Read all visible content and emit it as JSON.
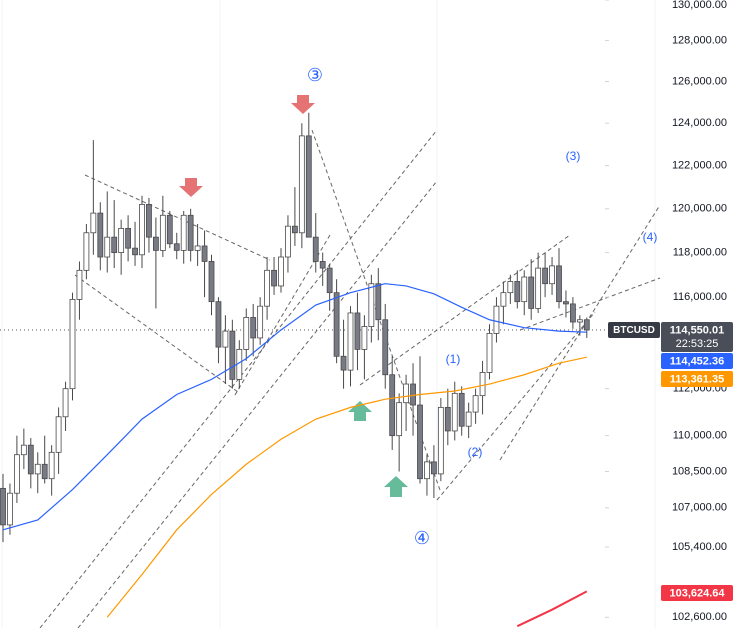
{
  "chart_data": {
    "type": "candlestick",
    "symbol": "BTCUSD",
    "countdown": "22:53:25",
    "last_price": 114550.01,
    "last_price_label": "114,550.01",
    "log_scale": true,
    "up_color": "#ffffff",
    "down_color": "#787b86",
    "wick_color": "#4a4a4a",
    "ylim": [
      102180,
      130000
    ],
    "yticks": [
      {
        "value": 130000,
        "label": "130,000.00"
      },
      {
        "value": 128000,
        "label": "128,000.00"
      },
      {
        "value": 126000,
        "label": "126,000.00"
      },
      {
        "value": 124000,
        "label": "124,000.00"
      },
      {
        "value": 122000,
        "label": "122,000.00"
      },
      {
        "value": 120000,
        "label": "120,000.00"
      },
      {
        "value": 118000,
        "label": "118,000.00"
      },
      {
        "value": 116000,
        "label": "116,000.00"
      },
      {
        "value": 112000,
        "label": "112,000.00"
      },
      {
        "value": 110000,
        "label": "110,000.00"
      },
      {
        "value": 108500,
        "label": "108,500.00"
      },
      {
        "value": 107000,
        "label": "107,000.00"
      },
      {
        "value": 105400,
        "label": "105,400.00"
      },
      {
        "value": 102600,
        "label": "102,600.00"
      }
    ],
    "ohlc": [
      [
        107800,
        108400,
        105600,
        106300
      ],
      [
        106300,
        108000,
        105900,
        107600
      ],
      [
        107600,
        110000,
        107200,
        109200
      ],
      [
        109200,
        110300,
        108600,
        109600
      ],
      [
        109600,
        109900,
        107800,
        108400
      ],
      [
        108400,
        109300,
        107600,
        108800
      ],
      [
        108800,
        110000,
        108000,
        108200
      ],
      [
        108200,
        109600,
        107500,
        109300
      ],
      [
        109300,
        111200,
        108400,
        110800
      ],
      [
        110800,
        112300,
        110200,
        112000
      ],
      [
        112000,
        116200,
        111500,
        115900
      ],
      [
        115900,
        117600,
        115000,
        117200
      ],
      [
        117200,
        119300,
        116800,
        118900
      ],
      [
        118900,
        123200,
        117900,
        119800
      ],
      [
        119800,
        120300,
        117200,
        117800
      ],
      [
        117800,
        120800,
        117100,
        118700
      ],
      [
        118700,
        120400,
        117300,
        118000
      ],
      [
        118000,
        119500,
        117000,
        119100
      ],
      [
        119100,
        119700,
        117600,
        118200
      ],
      [
        118200,
        119400,
        117400,
        117900
      ],
      [
        117900,
        120600,
        117300,
        120200
      ],
      [
        120200,
        120500,
        118000,
        118700
      ],
      [
        118700,
        119600,
        115500,
        118100
      ],
      [
        118100,
        120600,
        117800,
        119700
      ],
      [
        119700,
        119900,
        118200,
        118400
      ],
      [
        118400,
        118900,
        117700,
        118100
      ],
      [
        118100,
        119900,
        117500,
        119700
      ],
      [
        119700,
        120000,
        117600,
        118100
      ],
      [
        118100,
        119300,
        117400,
        118300
      ],
      [
        118300,
        119000,
        116000,
        117600
      ],
      [
        117600,
        117900,
        115200,
        115800
      ],
      [
        115800,
        116000,
        113100,
        113800
      ],
      [
        113800,
        115200,
        112200,
        114500
      ],
      [
        114500,
        115000,
        112000,
        112400
      ],
      [
        112400,
        114100,
        112000,
        113700
      ],
      [
        113700,
        115500,
        113200,
        115100
      ],
      [
        115100,
        115700,
        113400,
        114200
      ],
      [
        114200,
        116000,
        113900,
        115600
      ],
      [
        115600,
        117800,
        115000,
        117200
      ],
      [
        117200,
        117800,
        116100,
        116500
      ],
      [
        116500,
        118200,
        116200,
        117800
      ],
      [
        117800,
        119700,
        117100,
        119200
      ],
      [
        119200,
        121000,
        118300,
        118900
      ],
      [
        118900,
        124000,
        118200,
        123400
      ],
      [
        123400,
        124500,
        118800,
        118700
      ],
      [
        118700,
        119800,
        117100,
        117600
      ],
      [
        117600,
        118000,
        116500,
        117300
      ],
      [
        117300,
        117500,
        115400,
        116200
      ],
      [
        116200,
        116800,
        113100,
        113400
      ],
      [
        113400,
        115000,
        112000,
        112800
      ],
      [
        112800,
        115600,
        112100,
        115300
      ],
      [
        115300,
        116200,
        112800,
        113700
      ],
      [
        113700,
        115200,
        112400,
        114700
      ],
      [
        114700,
        117000,
        114000,
        116600
      ],
      [
        116600,
        117300,
        114100,
        115000
      ],
      [
        115000,
        115700,
        112000,
        112600
      ],
      [
        112600,
        113400,
        109400,
        110000
      ],
      [
        110000,
        111800,
        108500,
        111400
      ],
      [
        111400,
        112600,
        110200,
        112200
      ],
      [
        112200,
        113100,
        110000,
        111300
      ],
      [
        111300,
        113400,
        108000,
        108200
      ],
      [
        108200,
        109200,
        107500,
        108900
      ],
      [
        108900,
        109600,
        107400,
        108400
      ],
      [
        108400,
        111600,
        108100,
        111200
      ],
      [
        111200,
        112000,
        109600,
        110200
      ],
      [
        110200,
        112300,
        109800,
        111800
      ],
      [
        111800,
        112100,
        110000,
        110400
      ],
      [
        110400,
        111400,
        109900,
        111000
      ],
      [
        111000,
        112000,
        110500,
        111700
      ],
      [
        111700,
        113200,
        110900,
        112700
      ],
      [
        112700,
        114800,
        112400,
        114400
      ],
      [
        114400,
        116000,
        114000,
        115600
      ],
      [
        115600,
        116700,
        114800,
        116200
      ],
      [
        116200,
        117000,
        115700,
        116700
      ],
      [
        116700,
        117200,
        115500,
        115800
      ],
      [
        115800,
        117200,
        115200,
        116900
      ],
      [
        116900,
        117700,
        115000,
        115500
      ],
      [
        115500,
        118000,
        115300,
        117300
      ],
      [
        117300,
        118000,
        116000,
        116600
      ],
      [
        116600,
        117800,
        116100,
        117400
      ],
      [
        117400,
        118200,
        115500,
        115800
      ],
      [
        115800,
        116300,
        115100,
        115700
      ],
      [
        115700,
        116000,
        114600,
        114900
      ],
      [
        114900,
        115200,
        114300,
        115000
      ],
      [
        115000,
        115100,
        114200,
        114550.01
      ]
    ],
    "lines": [
      {
        "color": "#2962ff",
        "x": [
          0,
          5,
          10,
          15,
          20,
          25,
          30,
          35,
          40,
          45,
          50,
          55,
          58,
          62,
          66,
          70,
          75,
          80,
          84
        ],
        "values": [
          106100,
          106500,
          107750,
          109200,
          110700,
          111750,
          112400,
          113300,
          114550,
          115650,
          116200,
          116600,
          116500,
          116150,
          115550,
          115000,
          114650,
          114500,
          114452.36
        ],
        "value_label": "114,452.36"
      },
      {
        "color": "#ff9800",
        "x": [
          15,
          20,
          25,
          30,
          35,
          40,
          45,
          50,
          55,
          60,
          65,
          70,
          75,
          80,
          84
        ],
        "values": [
          102600,
          104300,
          106100,
          107550,
          108800,
          109850,
          110700,
          111200,
          111550,
          111750,
          111900,
          112200,
          112600,
          113100,
          113361.35
        ],
        "value_label": "113,361.35"
      },
      {
        "color": "#f23645",
        "x": [
          74,
          79,
          84
        ],
        "values": [
          102250,
          102900,
          103624.64
        ],
        "value_label": "103,624.64"
      }
    ],
    "annotations": [
      "③",
      "④",
      "(1)",
      "(2)",
      "(3)",
      "(4)"
    ]
  }
}
